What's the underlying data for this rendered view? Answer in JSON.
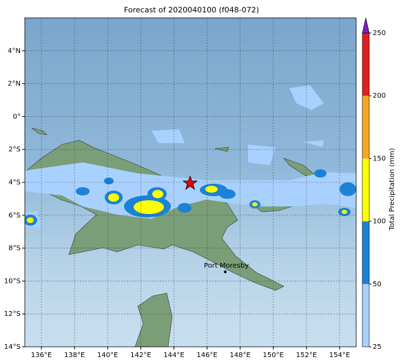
{
  "title": "Forecast of 2020040100 (f048-072)",
  "map": {
    "lon_range": [
      135,
      155
    ],
    "lat_range": [
      -14,
      6
    ],
    "lon_ticks": [
      {
        "value": 136,
        "label": "136°E"
      },
      {
        "value": 138,
        "label": "138°E"
      },
      {
        "value": 140,
        "label": "140°E"
      },
      {
        "value": 142,
        "label": "142°E"
      },
      {
        "value": 144,
        "label": "144°E"
      },
      {
        "value": 146,
        "label": "146°E"
      },
      {
        "value": 148,
        "label": "148°E"
      },
      {
        "value": 150,
        "label": "150°E"
      },
      {
        "value": 152,
        "label": "152°E"
      },
      {
        "value": 154,
        "label": "154°E"
      }
    ],
    "lat_ticks": [
      {
        "value": 4,
        "label": "4°N"
      },
      {
        "value": 2,
        "label": "2°N"
      },
      {
        "value": 0,
        "label": "0°"
      },
      {
        "value": -2,
        "label": "2°S"
      },
      {
        "value": -4,
        "label": "4°S"
      },
      {
        "value": -6,
        "label": "6°S"
      },
      {
        "value": -8,
        "label": "8°S"
      },
      {
        "value": -10,
        "label": "10°S"
      },
      {
        "value": -12,
        "label": "12°S"
      },
      {
        "value": -14,
        "label": "14°S"
      }
    ],
    "place": "Port Moresby"
  },
  "colorbar": {
    "label": "Total Precipitation (mm)",
    "levels": [
      25,
      50,
      100,
      150,
      200,
      250
    ],
    "colors": [
      "#a9d1ff",
      "#1b82d6",
      "#ffff00",
      "#f5a623",
      "#df2020"
    ],
    "extend_color": "#7a1fc9"
  }
}
